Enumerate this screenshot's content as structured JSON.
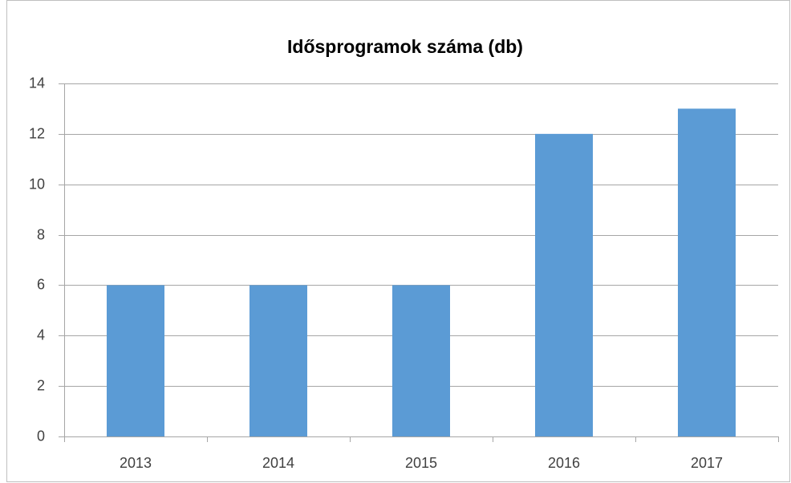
{
  "chart_data": {
    "type": "bar",
    "title": "Idősprogramok száma (db)",
    "categories": [
      "2013",
      "2014",
      "2015",
      "2016",
      "2017"
    ],
    "values": [
      6,
      6,
      6,
      12,
      13
    ],
    "color": "#5b9bd5",
    "ylim": [
      0,
      14
    ],
    "yticks": [
      0,
      2,
      4,
      6,
      8,
      10,
      12,
      14
    ],
    "grid": true
  }
}
